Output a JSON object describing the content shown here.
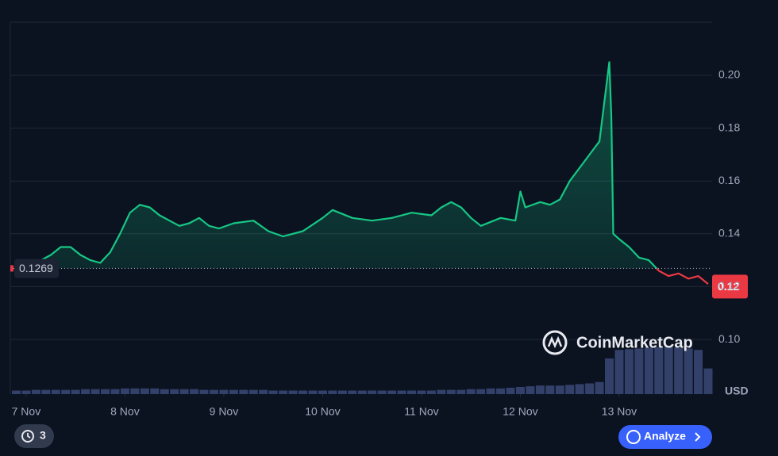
{
  "chart_data": {
    "type": "line",
    "x": [
      7.15,
      7.25,
      7.35,
      7.45,
      7.55,
      7.65,
      7.75,
      7.85,
      7.95,
      8.05,
      8.15,
      8.25,
      8.35,
      8.45,
      8.55,
      8.65,
      8.75,
      8.85,
      8.95,
      9.1,
      9.3,
      9.45,
      9.6,
      9.8,
      10.0,
      10.1,
      10.3,
      10.5,
      10.7,
      10.9,
      11.1,
      11.2,
      11.3,
      11.4,
      11.5,
      11.6,
      11.8,
      11.95,
      12.0,
      12.05,
      12.2,
      12.3,
      12.4,
      12.5,
      12.6,
      12.7,
      12.8,
      12.85,
      12.9,
      12.92,
      12.94,
      13.0,
      13.1,
      13.2,
      13.3,
      13.4,
      13.5,
      13.6,
      13.7,
      13.8,
      13.9
    ],
    "series": [
      {
        "color": "#16c784",
        "below_color": "#ea3943",
        "values": [
          0.13,
          0.132,
          0.135,
          0.135,
          0.132,
          0.13,
          0.129,
          0.133,
          0.14,
          0.148,
          0.151,
          0.15,
          0.147,
          0.145,
          0.143,
          0.144,
          0.146,
          0.143,
          0.142,
          0.144,
          0.145,
          0.141,
          0.139,
          0.141,
          0.146,
          0.149,
          0.146,
          0.145,
          0.146,
          0.148,
          0.147,
          0.15,
          0.152,
          0.15,
          0.146,
          0.143,
          0.146,
          0.145,
          0.156,
          0.15,
          0.152,
          0.151,
          0.153,
          0.16,
          0.165,
          0.17,
          0.175,
          0.19,
          0.205,
          0.185,
          0.14,
          0.138,
          0.135,
          0.131,
          0.13,
          0.126,
          0.124,
          0.125,
          0.123,
          0.124,
          0.121
        ]
      }
    ],
    "baseline": 0.1269,
    "price_tag": 0.12,
    "volume": {
      "color": "#3b4a78",
      "x": [
        6.9,
        7.0,
        7.1,
        7.2,
        7.3,
        7.4,
        7.5,
        7.6,
        7.7,
        7.8,
        7.9,
        8.0,
        8.1,
        8.2,
        8.3,
        8.4,
        8.5,
        8.6,
        8.7,
        8.8,
        8.9,
        9.0,
        9.1,
        9.2,
        9.3,
        9.4,
        9.5,
        9.6,
        9.7,
        9.8,
        9.9,
        10.0,
        10.1,
        10.2,
        10.3,
        10.4,
        10.5,
        10.6,
        10.7,
        10.8,
        10.9,
        11.0,
        11.1,
        11.2,
        11.3,
        11.4,
        11.5,
        11.6,
        11.7,
        11.8,
        11.9,
        12.0,
        12.1,
        12.2,
        12.3,
        12.4,
        12.5,
        12.6,
        12.7,
        12.8,
        12.9,
        13.0,
        13.1,
        13.2,
        13.3,
        13.4,
        13.5,
        13.6,
        13.7,
        13.8,
        13.9
      ],
      "values": [
        5,
        5,
        6,
        6,
        6,
        6,
        6,
        7,
        7,
        7,
        7,
        8,
        8,
        8,
        8,
        7,
        7,
        7,
        7,
        6,
        6,
        6,
        6,
        6,
        6,
        6,
        5,
        5,
        5,
        5,
        5,
        5,
        5,
        5,
        5,
        5,
        5,
        5,
        5,
        5,
        5,
        5,
        5,
        6,
        6,
        6,
        7,
        7,
        8,
        8,
        9,
        10,
        11,
        12,
        12,
        12,
        13,
        14,
        15,
        17,
        50,
        62,
        63,
        64,
        65,
        66,
        66,
        65,
        64,
        62,
        36
      ],
      "lim": [
        0,
        100
      ]
    },
    "xlim": [
      6.84,
      13.94
    ],
    "xticks": [
      {
        "value": 7,
        "label": "7 Nov"
      },
      {
        "value": 8,
        "label": "8 Nov"
      },
      {
        "value": 9,
        "label": "9 Nov"
      },
      {
        "value": 10,
        "label": "10 Nov"
      },
      {
        "value": 11,
        "label": "11 Nov"
      },
      {
        "value": 12,
        "label": "12 Nov"
      },
      {
        "value": 13,
        "label": "13 Nov"
      }
    ],
    "ylim": [
      0.0793,
      0.2201
    ],
    "yticks": [
      {
        "value": 0.1,
        "label": "0.10"
      },
      0.12,
      0.14,
      0.16,
      0.18,
      {
        "value": 0.2,
        "label": "0.20"
      }
    ],
    "grid": true,
    "y_unit": "USD",
    "watermark": "CoinMarketCap",
    "history_count": "3",
    "analyze_button": "Analyze"
  }
}
